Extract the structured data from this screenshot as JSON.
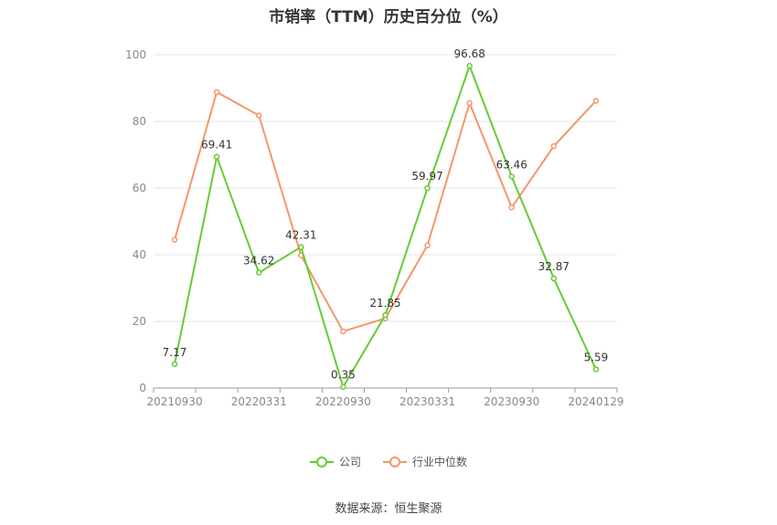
{
  "chart_data": {
    "type": "line",
    "title": "市销率（TTM）历史百分位（%）",
    "xlabel": "",
    "ylabel": "",
    "ylim": [
      0,
      100
    ],
    "yticks": [
      0,
      20,
      40,
      60,
      80,
      100
    ],
    "grid": true,
    "legend_position": "bottom",
    "categories": [
      "20210930",
      "",
      "20220331",
      "",
      "20220930",
      "",
      "20230331",
      "",
      "20230930",
      "",
      "20240129"
    ],
    "series": [
      {
        "name": "公司",
        "color": "#66cc33",
        "values": [
          7.17,
          69.41,
          34.62,
          42.31,
          0.35,
          21.85,
          59.97,
          96.68,
          63.46,
          32.87,
          5.59
        ],
        "data_labels": [
          "7.17",
          "69.41",
          "34.62",
          "42.31",
          "0.35",
          "21.85",
          "59.97",
          "96.68",
          "63.46",
          "32.87",
          "5.59"
        ]
      },
      {
        "name": "行业中位数",
        "color": "#f5956a",
        "values": [
          44.5,
          88.8,
          81.8,
          39.8,
          17.0,
          20.9,
          42.8,
          85.5,
          54.2,
          72.6,
          86.2
        ]
      }
    ]
  },
  "source": "数据来源：恒生聚源"
}
